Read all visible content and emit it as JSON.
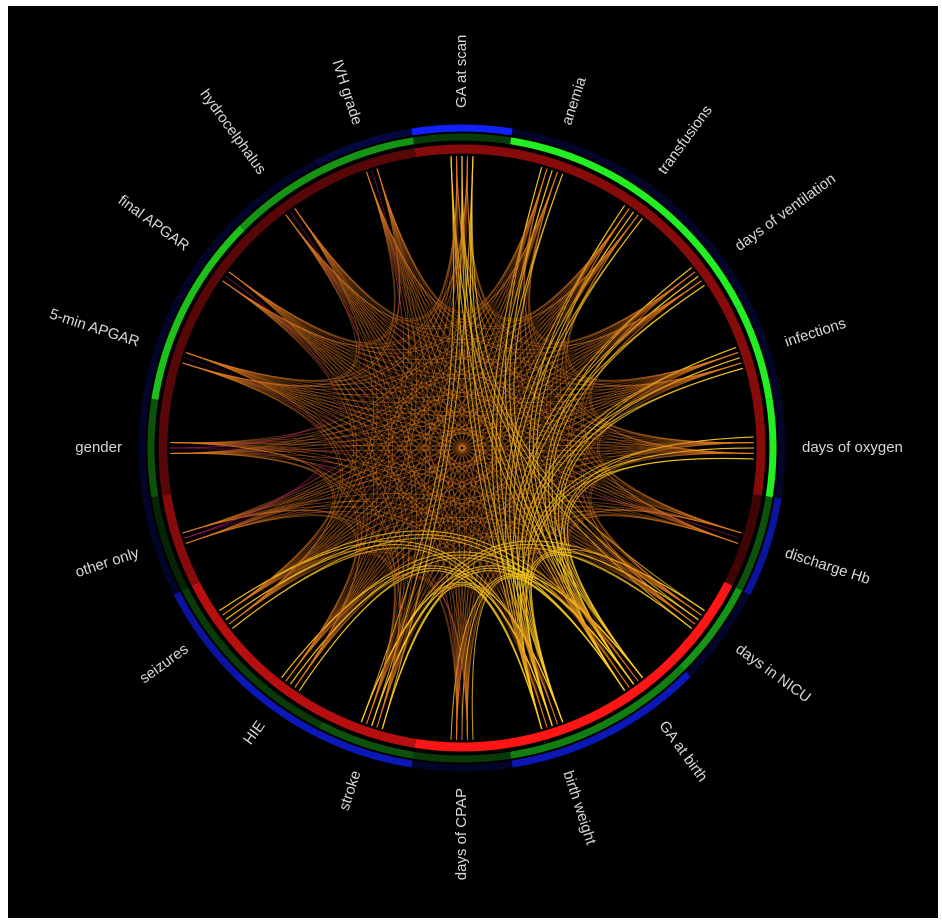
{
  "diagram": {
    "type": "chord",
    "nodes": [
      {
        "id": "ga_scan",
        "label": "GA at scan"
      },
      {
        "id": "anemia",
        "label": "anemia"
      },
      {
        "id": "transfusions",
        "label": "transfusions"
      },
      {
        "id": "days_vent",
        "label": "days of ventilation"
      },
      {
        "id": "infections",
        "label": "infections"
      },
      {
        "id": "days_oxygen",
        "label": "days of oxygen"
      },
      {
        "id": "discharge_hb",
        "label": "discharge Hb"
      },
      {
        "id": "days_nicu",
        "label": "days in NICU"
      },
      {
        "id": "ga_birth",
        "label": "GA at birth"
      },
      {
        "id": "birth_weight",
        "label": "birth weight"
      },
      {
        "id": "days_cpap",
        "label": "days of CPAP"
      },
      {
        "id": "stroke",
        "label": "stroke"
      },
      {
        "id": "hie",
        "label": "HIE"
      },
      {
        "id": "seizures",
        "label": "seizures"
      },
      {
        "id": "other_only",
        "label": "other only"
      },
      {
        "id": "gender",
        "label": "gender"
      },
      {
        "id": "five_min_apgar",
        "label": "5-min APGAR"
      },
      {
        "id": "final_apgar",
        "label": "final APGAR"
      },
      {
        "id": "hydrocelphalus",
        "label": "hydrocelphalus"
      },
      {
        "id": "ivh_grade",
        "label": "IVH grade"
      }
    ],
    "rings": {
      "blue": [
        1.0,
        0.1,
        0.1,
        0.1,
        0.1,
        0.1,
        0.6,
        0.1,
        0.7,
        0.7,
        0.1,
        0.7,
        0.7,
        0.6,
        0.1,
        0.1,
        0.1,
        0.1,
        0.1,
        0.2
      ],
      "green": [
        0.2,
        1.0,
        1.0,
        1.0,
        1.0,
        1.0,
        0.3,
        0.6,
        0.5,
        0.5,
        0.2,
        0.3,
        0.2,
        0.2,
        0.1,
        0.3,
        0.8,
        0.8,
        0.6,
        0.6
      ],
      "red": [
        0.5,
        0.5,
        0.5,
        0.5,
        0.5,
        0.5,
        0.2,
        1.0,
        1.0,
        1.0,
        1.0,
        0.7,
        0.7,
        0.7,
        0.5,
        0.3,
        0.3,
        0.3,
        0.3,
        0.3
      ]
    },
    "colors": {
      "background": "#000000",
      "ring_blue": "#1020ff",
      "ring_green": "#22ee22",
      "ring_red": "#ff1515",
      "chord_strong": "#ffcc22",
      "chord_mid": "#e07a1e",
      "chord_weak": "#cc2080"
    }
  }
}
